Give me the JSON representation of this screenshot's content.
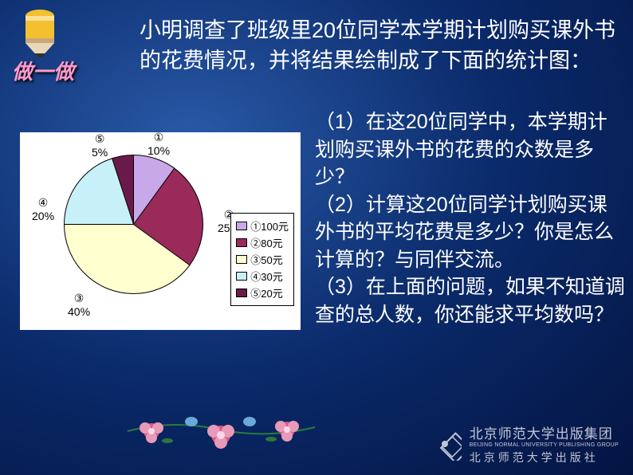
{
  "banner": "做一做",
  "title": "小明调查了班级里20位同学本学期计划购买课外书的花费情况，并将结果绘制成了下面的统计图：",
  "questions": "（1）在这20位同学中，本学期计划购买课外书的花费的众数是多少？\n（2）计算这20位同学计划购买课外书的平均花费是多少？你是怎么计算的？与同伴交流。\n（3）在上面的问题，如果不知道调查的总人数，你还能求平均数吗？",
  "chart": {
    "type": "pie",
    "background_color": "#ffffff",
    "slices": [
      {
        "id": "①",
        "label": "10%",
        "value": 10,
        "color": "#c8a8e8",
        "legend": "①100元"
      },
      {
        "id": "②",
        "label": "25%",
        "value": 25,
        "color": "#9a2a5a",
        "legend": "②80元"
      },
      {
        "id": "③",
        "label": "40%",
        "value": 40,
        "color": "#ffffd0",
        "legend": "③50元"
      },
      {
        "id": "④",
        "label": "20%",
        "value": 20,
        "color": "#c8f0f8",
        "legend": "④30元"
      },
      {
        "id": "⑤",
        "label": "5%",
        "value": 5,
        "color": "#6a1a4a",
        "legend": "⑤20元"
      }
    ],
    "label_fontsize": 14,
    "border_color": "#000000",
    "gradient_stops": "#c8a8e8 0deg 36deg, #9a2a5a 36deg 126deg, #ffffd0 126deg 270deg, #c8f0f8 270deg 342deg, #6a1a4a 342deg 360deg"
  },
  "publisher": {
    "name_cn": "北京师范大学出版集团",
    "name_en": "BEIJING NORMAL UNIVERSITY PUBLISHING GROUP",
    "sub": "北京师范大学出版社",
    "logo_color": "#ffffff"
  },
  "decoration": {
    "pencil": {
      "body_color": "#f4c030",
      "band_color": "#c8a878",
      "tip_color": "#333333"
    },
    "flowers": {
      "petal_a": "#d85a8a",
      "petal_b": "#e89ab8",
      "leaf": "#2a7a3a",
      "bird": "#6aa8d8"
    }
  }
}
